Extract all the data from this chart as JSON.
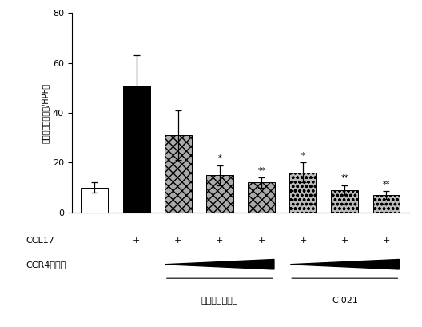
{
  "bar_values": [
    10,
    51,
    31,
    15,
    12,
    16,
    9,
    7
  ],
  "bar_errors": [
    2,
    12,
    10,
    4,
    2,
    4,
    2,
    1.5
  ],
  "face_colors": [
    "white",
    "black",
    "#aaaaaa",
    "#aaaaaa",
    "#aaaaaa",
    "#bbbbbb",
    "#bbbbbb",
    "#bbbbbb"
  ],
  "hatch_patterns": [
    "",
    "",
    "xxx",
    "xxx",
    "xxx",
    "ooo",
    "ooo",
    "ooo"
  ],
  "significance": [
    "",
    "",
    "",
    "*",
    "**",
    "*",
    "**",
    "**"
  ],
  "ylim": [
    0,
    80
  ],
  "yticks": [
    0,
    20,
    40,
    60,
    80
  ],
  "ylabel": "遊走細胞数（細胞/HPF）",
  "ccl17_labels": [
    "-",
    "+",
    "+",
    "+",
    "+",
    "+",
    "+",
    "+"
  ],
  "ccr4_labels": [
    "-",
    "-"
  ],
  "group1_label": "モガムリズマブ",
  "group2_label": "C-021",
  "ccl17_row_label": "CCL17",
  "ccr4_row_label": "CCR4限害剤",
  "bar_width": 0.65,
  "fig_width": 5.28,
  "fig_height": 4.09,
  "dpi": 100
}
